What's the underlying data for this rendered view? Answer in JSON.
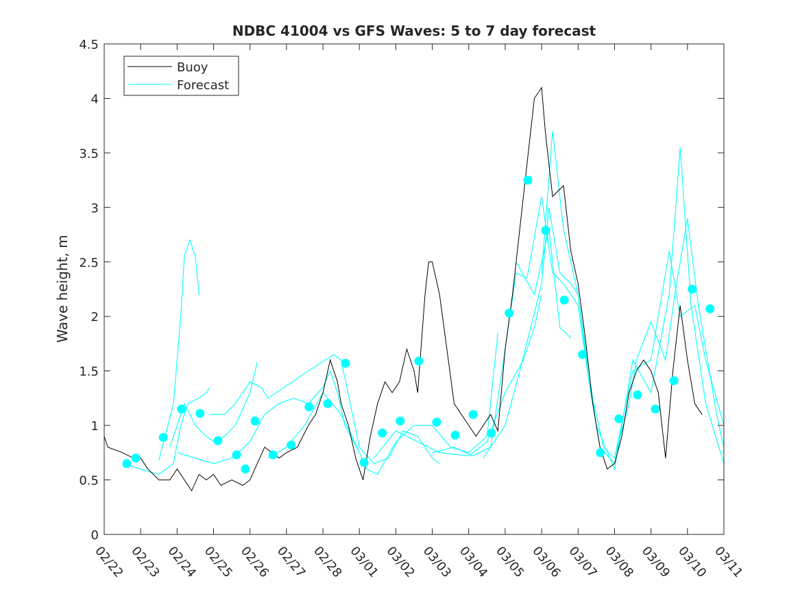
{
  "chart_data": {
    "type": "line",
    "title": "NDBC 41004 vs GFS Waves: 5 to 7 day forecast",
    "xlabel": "",
    "ylabel": "Wave height, m",
    "ylim": [
      0,
      4.5
    ],
    "xlim_days": [
      0,
      17
    ],
    "yticks": [
      "0",
      "0.5",
      "1",
      "1.5",
      "2",
      "2.5",
      "3",
      "3.5",
      "4",
      "4.5"
    ],
    "xticks": [
      "02/22",
      "02/23",
      "02/24",
      "02/25",
      "02/26",
      "02/27",
      "02/28",
      "03/01",
      "03/02",
      "03/03",
      "03/04",
      "03/05",
      "03/06",
      "03/07",
      "03/08",
      "03/09",
      "03/10",
      "03/11"
    ],
    "grid": false,
    "legend": {
      "placement": "top-left",
      "entries": [
        "Buoy",
        "Forecast"
      ]
    },
    "colors": {
      "buoy": "#000000",
      "forecast": "#00ffff"
    },
    "buoy": [
      [
        0,
        0.9
      ],
      [
        0.1,
        0.8
      ],
      [
        0.5,
        0.75
      ],
      [
        0.8,
        0.7
      ],
      [
        1.0,
        0.7
      ],
      [
        1.2,
        0.6
      ],
      [
        1.5,
        0.5
      ],
      [
        1.8,
        0.5
      ],
      [
        2.0,
        0.6
      ],
      [
        2.2,
        0.5
      ],
      [
        2.4,
        0.4
      ],
      [
        2.6,
        0.55
      ],
      [
        2.8,
        0.5
      ],
      [
        3.0,
        0.55
      ],
      [
        3.2,
        0.45
      ],
      [
        3.5,
        0.5
      ],
      [
        3.8,
        0.45
      ],
      [
        4.0,
        0.5
      ],
      [
        4.2,
        0.65
      ],
      [
        4.4,
        0.8
      ],
      [
        4.6,
        0.75
      ],
      [
        4.8,
        0.7
      ],
      [
        5.0,
        0.75
      ],
      [
        5.3,
        0.8
      ],
      [
        5.6,
        1.0
      ],
      [
        5.8,
        1.1
      ],
      [
        6.0,
        1.3
      ],
      [
        6.2,
        1.6
      ],
      [
        6.4,
        1.4
      ],
      [
        6.5,
        1.2
      ],
      [
        6.7,
        1.0
      ],
      [
        6.9,
        0.7
      ],
      [
        7.0,
        0.6
      ],
      [
        7.1,
        0.5
      ],
      [
        7.3,
        0.9
      ],
      [
        7.5,
        1.2
      ],
      [
        7.7,
        1.4
      ],
      [
        7.9,
        1.3
      ],
      [
        8.1,
        1.4
      ],
      [
        8.3,
        1.7
      ],
      [
        8.5,
        1.5
      ],
      [
        8.6,
        1.3
      ],
      [
        8.8,
        2.2
      ],
      [
        8.9,
        2.5
      ],
      [
        9.0,
        2.5
      ],
      [
        9.2,
        2.2
      ],
      [
        9.4,
        1.7
      ],
      [
        9.6,
        1.2
      ],
      [
        9.8,
        1.1
      ],
      [
        10.0,
        1.0
      ],
      [
        10.2,
        0.9
      ],
      [
        10.4,
        1.0
      ],
      [
        10.6,
        1.1
      ],
      [
        10.8,
        0.95
      ],
      [
        11.0,
        1.7
      ],
      [
        11.2,
        2.2
      ],
      [
        11.4,
        2.8
      ],
      [
        11.6,
        3.4
      ],
      [
        11.8,
        4.0
      ],
      [
        12.0,
        4.1
      ],
      [
        12.1,
        3.7
      ],
      [
        12.3,
        3.1
      ],
      [
        12.6,
        3.2
      ],
      [
        12.8,
        2.6
      ],
      [
        13.0,
        2.3
      ],
      [
        13.2,
        1.8
      ],
      [
        13.4,
        1.2
      ],
      [
        13.6,
        0.8
      ],
      [
        13.8,
        0.6
      ],
      [
        14.0,
        0.65
      ],
      [
        14.2,
        0.9
      ],
      [
        14.4,
        1.3
      ],
      [
        14.6,
        1.5
      ],
      [
        14.8,
        1.6
      ],
      [
        15.0,
        1.5
      ],
      [
        15.2,
        1.3
      ],
      [
        15.4,
        0.7
      ],
      [
        15.6,
        1.5
      ],
      [
        15.8,
        2.1
      ],
      [
        16.0,
        1.6
      ],
      [
        16.2,
        1.2
      ],
      [
        16.4,
        1.1
      ]
    ],
    "forecast_runs": [
      [
        [
          1.5,
          0.68
        ],
        [
          1.9,
          1.2
        ],
        [
          2.1,
          2.0
        ],
        [
          2.2,
          2.55
        ],
        [
          2.35,
          2.7
        ],
        [
          2.5,
          2.55
        ],
        [
          2.6,
          2.2
        ]
      ],
      [
        [
          0.5,
          0.65
        ],
        [
          1.0,
          0.6
        ],
        [
          1.5,
          0.55
        ],
        [
          1.9,
          0.65
        ],
        [
          2.1,
          1.0
        ],
        [
          2.3,
          1.2
        ],
        [
          2.6,
          1.25
        ],
        [
          2.8,
          1.3
        ],
        [
          2.9,
          1.35
        ]
      ],
      [
        [
          1.8,
          0.8
        ],
        [
          2.2,
          1.2
        ],
        [
          2.5,
          1.0
        ],
        [
          2.8,
          0.9
        ],
        [
          3.0,
          0.85
        ],
        [
          3.3,
          0.9
        ],
        [
          3.6,
          1.0
        ],
        [
          4.0,
          1.3
        ],
        [
          4.2,
          1.58
        ]
      ],
      [
        [
          2.0,
          0.75
        ],
        [
          2.5,
          0.7
        ],
        [
          3.0,
          0.65
        ],
        [
          3.5,
          0.7
        ],
        [
          4.0,
          0.85
        ],
        [
          4.4,
          1.1
        ],
        [
          4.8,
          1.2
        ],
        [
          5.2,
          1.25
        ],
        [
          5.6,
          1.2
        ],
        [
          6.0,
          1.35
        ],
        [
          6.2,
          1.5
        ],
        [
          6.4,
          1.3
        ],
        [
          6.6,
          1.0
        ],
        [
          7.0,
          0.75
        ]
      ],
      [
        [
          2.9,
          1.1
        ],
        [
          3.3,
          1.1
        ],
        [
          3.6,
          1.2
        ],
        [
          4.0,
          1.4
        ],
        [
          4.3,
          1.35
        ],
        [
          4.5,
          1.25
        ],
        [
          5.6,
          1.5
        ],
        [
          6.3,
          1.65
        ],
        [
          6.5,
          1.6
        ],
        [
          7.0,
          0.8
        ],
        [
          7.4,
          0.65
        ],
        [
          7.8,
          0.7
        ],
        [
          8.2,
          0.95
        ],
        [
          8.6,
          0.9
        ],
        [
          9.0,
          0.7
        ],
        [
          9.2,
          0.65
        ]
      ],
      [
        [
          4.5,
          0.7
        ],
        [
          5.0,
          0.8
        ],
        [
          5.5,
          1.0
        ],
        [
          6.0,
          1.3
        ],
        [
          6.5,
          1.1
        ],
        [
          6.8,
          0.9
        ],
        [
          7.2,
          0.6
        ],
        [
          7.5,
          0.55
        ],
        [
          8.0,
          0.85
        ],
        [
          8.5,
          1.0
        ],
        [
          9.0,
          1.0
        ],
        [
          9.5,
          0.8
        ],
        [
          10.0,
          0.75
        ],
        [
          10.5,
          0.9
        ],
        [
          10.8,
          1.85
        ]
      ],
      [
        [
          7.4,
          0.7
        ],
        [
          8.0,
          0.95
        ],
        [
          8.6,
          0.85
        ],
        [
          9.2,
          0.75
        ],
        [
          10.0,
          0.72
        ],
        [
          10.5,
          0.85
        ],
        [
          11.0,
          1.3
        ],
        [
          11.5,
          1.6
        ],
        [
          11.8,
          1.9
        ],
        [
          12.0,
          2.2
        ]
      ],
      [
        [
          9.0,
          0.75
        ],
        [
          9.6,
          0.8
        ],
        [
          10.1,
          0.72
        ],
        [
          10.6,
          0.8
        ],
        [
          11.0,
          1.7
        ],
        [
          11.3,
          2.4
        ],
        [
          11.6,
          2.35
        ],
        [
          12.0,
          3.1
        ],
        [
          12.3,
          2.4
        ],
        [
          12.6,
          2.3
        ],
        [
          13.0,
          2.1
        ],
        [
          13.3,
          1.4
        ],
        [
          13.6,
          0.8
        ],
        [
          14.0,
          0.65
        ]
      ],
      [
        [
          10.4,
          0.7
        ],
        [
          11.0,
          1.0
        ],
        [
          11.4,
          1.5
        ],
        [
          12.0,
          2.3
        ],
        [
          12.2,
          3.0
        ],
        [
          12.5,
          2.4
        ],
        [
          12.8,
          2.3
        ],
        [
          13.0,
          2.2
        ],
        [
          13.3,
          1.4
        ],
        [
          13.7,
          0.8
        ],
        [
          14.0,
          0.7
        ],
        [
          14.4,
          1.2
        ],
        [
          14.6,
          1.6
        ],
        [
          15.0,
          1.95
        ],
        [
          15.4,
          1.6
        ],
        [
          15.7,
          2.3
        ],
        [
          16.0,
          2.9
        ],
        [
          16.3,
          2.1
        ],
        [
          16.8,
          1.1
        ],
        [
          17.0,
          0.8
        ]
      ],
      [
        [
          12.0,
          2.4
        ],
        [
          12.3,
          3.7
        ],
        [
          12.6,
          2.8
        ],
        [
          13.0,
          2.2
        ],
        [
          13.5,
          1.0
        ],
        [
          14.0,
          0.6
        ],
        [
          14.5,
          1.6
        ],
        [
          15.0,
          1.3
        ],
        [
          15.5,
          2.2
        ],
        [
          15.8,
          3.55
        ],
        [
          16.1,
          2.1
        ],
        [
          16.5,
          1.2
        ],
        [
          17.0,
          0.65
        ]
      ],
      [
        [
          14.0,
          0.7
        ],
        [
          14.5,
          1.5
        ],
        [
          15.0,
          1.6
        ],
        [
          15.5,
          2.6
        ],
        [
          15.8,
          2.0
        ],
        [
          16.2,
          2.1
        ],
        [
          16.5,
          1.6
        ],
        [
          17.0,
          1.0
        ]
      ],
      [
        [
          11.3,
          2.5
        ],
        [
          11.8,
          2.2
        ],
        [
          12.2,
          2.8
        ],
        [
          12.5,
          1.9
        ],
        [
          12.8,
          1.8
        ]
      ]
    ],
    "forecast_points": [
      [
        0.62,
        0.65
      ],
      [
        0.87,
        0.7
      ],
      [
        1.62,
        0.89
      ],
      [
        2.12,
        1.15
      ],
      [
        2.63,
        1.11
      ],
      [
        3.12,
        0.86
      ],
      [
        3.63,
        0.73
      ],
      [
        3.87,
        0.6
      ],
      [
        4.14,
        1.04
      ],
      [
        4.63,
        0.73
      ],
      [
        5.13,
        0.82
      ],
      [
        5.62,
        1.17
      ],
      [
        6.13,
        1.2
      ],
      [
        6.62,
        1.57
      ],
      [
        7.13,
        0.66
      ],
      [
        7.63,
        0.93
      ],
      [
        8.12,
        1.04
      ],
      [
        8.63,
        1.59
      ],
      [
        9.12,
        1.03
      ],
      [
        9.63,
        0.91
      ],
      [
        10.12,
        1.1
      ],
      [
        10.62,
        0.93
      ],
      [
        11.11,
        2.03
      ],
      [
        11.62,
        3.25
      ],
      [
        12.11,
        2.79
      ],
      [
        12.62,
        2.15
      ],
      [
        13.12,
        1.65
      ],
      [
        13.61,
        0.75
      ],
      [
        14.12,
        1.06
      ],
      [
        14.63,
        1.28
      ],
      [
        15.12,
        1.15
      ],
      [
        15.63,
        1.41
      ],
      [
        16.13,
        2.25
      ],
      [
        16.62,
        2.07
      ]
    ]
  }
}
